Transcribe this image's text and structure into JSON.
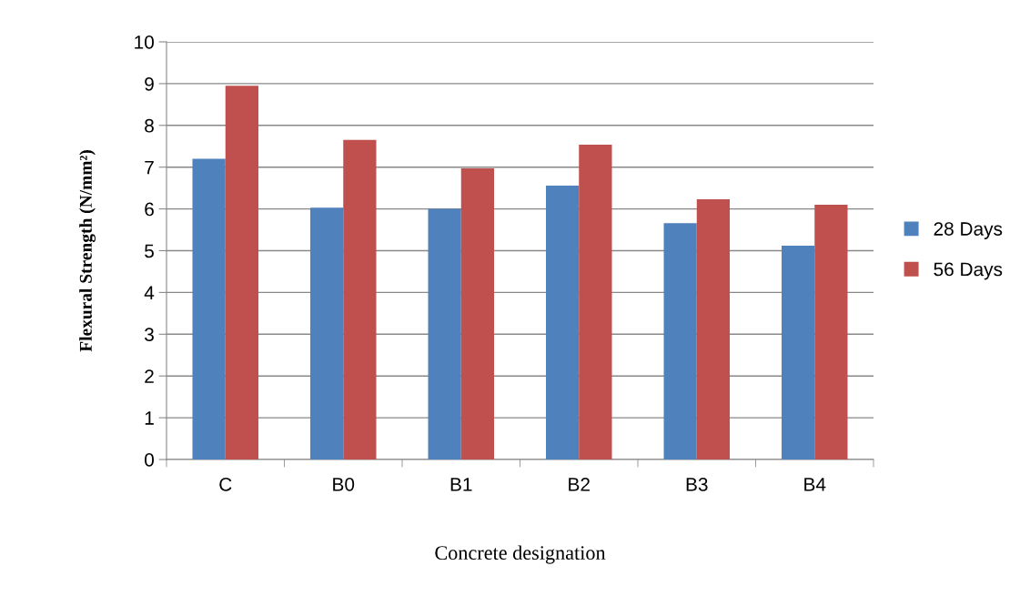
{
  "chart_data": {
    "type": "bar",
    "xlabel": "Concrete designation",
    "ylabel": "Flexural Strength (N/mm²)",
    "categories": [
      "C",
      "B0",
      "B1",
      "B2",
      "B3",
      "B4"
    ],
    "series": [
      {
        "name": "28 Days",
        "color": "#4f81bd",
        "values": [
          7.2,
          6.03,
          6.0,
          6.56,
          5.66,
          5.12
        ]
      },
      {
        "name": "56 Days",
        "color": "#c0504d",
        "values": [
          8.95,
          7.65,
          6.97,
          7.54,
          6.23,
          6.1
        ]
      }
    ],
    "ylim": [
      0,
      10
    ],
    "yticks": [
      0,
      1,
      2,
      3,
      4,
      5,
      6,
      7,
      8,
      9,
      10
    ],
    "grid": "y",
    "legend": "right"
  }
}
